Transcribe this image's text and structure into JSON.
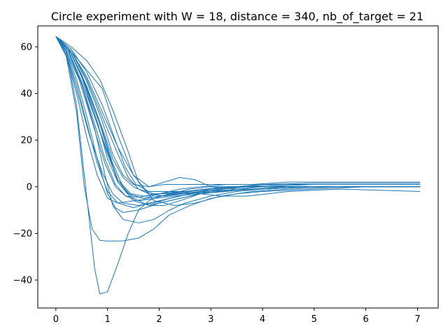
{
  "chart_data": {
    "type": "line",
    "title": "Circle experiment with W = 18, distance = 340, nb_of_target = 21",
    "xlabel": "",
    "ylabel": "",
    "xlim": [
      -0.35,
      7.4
    ],
    "ylim": [
      -52,
      69
    ],
    "xticks": [
      0,
      1,
      2,
      3,
      4,
      5,
      6,
      7
    ],
    "yticks": [
      -40,
      -20,
      0,
      20,
      40,
      60
    ],
    "grid": false,
    "color": "#1f77b4",
    "series": [
      {
        "x": [
          0,
          0.2,
          0.4,
          0.6,
          0.75,
          0.85,
          1.0,
          1.2,
          1.4,
          1.6,
          1.8,
          2.0,
          2.3,
          2.6,
          3.0,
          3.5,
          4.0,
          5.0,
          6.0,
          7.05
        ],
        "values": [
          64.5,
          58,
          35,
          -5,
          -35,
          -46,
          -45,
          -33,
          -20,
          -10,
          -6,
          -4,
          -3,
          -2.5,
          -2,
          -1.5,
          -1,
          0,
          0,
          0
        ]
      },
      {
        "x": [
          0,
          0.2,
          0.4,
          0.55,
          0.7,
          0.85,
          1.0,
          1.3,
          1.6,
          1.9,
          2.2,
          2.6,
          3.0,
          3.5,
          4.0,
          5.0,
          6.0,
          7.05
        ],
        "values": [
          64.5,
          56,
          32,
          0,
          -18,
          -23,
          -23.3,
          -23.2,
          -22,
          -18,
          -12,
          -8,
          -5,
          -3,
          -2,
          -1,
          0,
          0
        ]
      },
      {
        "x": [
          0,
          0.3,
          0.6,
          0.9,
          1.2,
          1.5,
          1.8,
          2.1,
          2.4,
          2.8,
          3.2,
          3.7,
          4.5,
          5.5,
          7.05
        ],
        "values": [
          64.5,
          58,
          50,
          42,
          22,
          5,
          -3,
          -4,
          -3,
          -2,
          -1,
          0,
          0,
          0,
          0
        ]
      },
      {
        "x": [
          0,
          0.3,
          0.6,
          0.85,
          1.1,
          1.4,
          1.6,
          1.9,
          2.3,
          2.7,
          3.2,
          3.8,
          4.5,
          5.5,
          7.05
        ],
        "values": [
          64.5,
          60,
          54,
          46,
          33,
          15,
          2,
          -6,
          -8,
          -7,
          -4,
          -2,
          -1,
          0,
          0
        ]
      },
      {
        "x": [
          0,
          0.2,
          0.4,
          0.6,
          0.8,
          1.0,
          1.15,
          1.3,
          1.6,
          2.0,
          2.4,
          2.8,
          3.2,
          3.8,
          4.5,
          7.05
        ],
        "values": [
          64.5,
          58,
          46,
          30,
          12,
          -3,
          -9,
          -11,
          -10,
          -7,
          -5,
          -3,
          -2,
          -1,
          0,
          0
        ]
      },
      {
        "x": [
          0,
          0.25,
          0.5,
          0.75,
          1.0,
          1.2,
          1.5,
          1.8,
          2.2,
          2.6,
          3.0,
          3.5,
          4.0,
          5.0,
          7.05
        ],
        "values": [
          64.5,
          59,
          48,
          34,
          16,
          2,
          -6,
          -8,
          -6,
          -4,
          -2,
          0,
          1,
          1.5,
          1.5
        ]
      },
      {
        "x": [
          0,
          0.25,
          0.5,
          0.75,
          0.95,
          1.1,
          1.3,
          1.6,
          1.9,
          2.2,
          2.5,
          3.0,
          3.5,
          4.0,
          5.0,
          7.05
        ],
        "values": [
          64.5,
          58,
          44,
          25,
          5,
          -8,
          -14,
          -15.5,
          -14,
          -10,
          -7,
          -4,
          -2,
          -1,
          0,
          0
        ]
      },
      {
        "x": [
          0,
          0.3,
          0.6,
          0.9,
          1.2,
          1.5,
          1.8,
          2.1,
          2.4,
          2.7,
          3.0,
          3.5,
          4.0,
          5.0,
          7.05
        ],
        "values": [
          64.5,
          58,
          47,
          32,
          17,
          5,
          0,
          2,
          4,
          3,
          0,
          -1,
          -1,
          0,
          0
        ]
      },
      {
        "x": [
          0,
          0.3,
          0.6,
          0.9,
          1.1,
          1.3,
          1.5,
          1.8,
          2.1,
          2.4,
          2.8,
          3.2,
          3.7,
          4.5,
          7.05
        ],
        "values": [
          64.5,
          57,
          42,
          24,
          10,
          0,
          -5,
          -8,
          -8,
          -6,
          -3,
          -1,
          0,
          0,
          0
        ]
      },
      {
        "x": [
          0,
          0.2,
          0.4,
          0.6,
          0.8,
          1.0,
          1.2,
          1.5,
          1.8,
          2.2,
          2.6,
          3.0,
          3.5,
          4.5,
          7.05
        ],
        "values": [
          64.5,
          57,
          44,
          27,
          10,
          -2,
          -7,
          -9,
          -7,
          -5,
          -3,
          -1,
          0,
          1,
          1
        ]
      },
      {
        "x": [
          0,
          0.2,
          0.45,
          0.7,
          0.95,
          1.15,
          1.35,
          1.6,
          2.0,
          2.5,
          3.0,
          3.5,
          4.0,
          5.0,
          7.05
        ],
        "values": [
          64.5,
          58,
          46,
          28,
          10,
          0,
          -4,
          -4.5,
          -3,
          -2,
          -1,
          0,
          1,
          1,
          1
        ]
      },
      {
        "x": [
          0,
          0.25,
          0.5,
          0.8,
          1.0,
          1.2,
          1.4,
          1.7,
          2.0,
          2.4,
          2.8,
          3.2,
          3.7,
          4.5,
          7.05
        ],
        "values": [
          64.5,
          59,
          48,
          28,
          12,
          2,
          -3,
          -5,
          -4,
          -3,
          -2,
          -1,
          0,
          0,
          0
        ]
      },
      {
        "x": [
          0,
          0.3,
          0.6,
          0.9,
          1.1,
          1.3,
          1.5,
          1.8,
          2.1,
          2.5,
          3.0,
          3.5,
          4.0,
          5.0,
          7.05
        ],
        "values": [
          64.5,
          57,
          43,
          25,
          12,
          4,
          0,
          -3,
          -4,
          -3,
          -2,
          -1,
          0,
          0,
          0
        ]
      },
      {
        "x": [
          0,
          0.2,
          0.4,
          0.6,
          0.8,
          1.0,
          1.2,
          1.5,
          1.9,
          2.3,
          2.8,
          3.3,
          3.8,
          4.5,
          7.05
        ],
        "values": [
          64.5,
          56,
          40,
          21,
          5,
          -5,
          -7,
          -6,
          -5,
          -4,
          -3,
          -2,
          -1,
          0,
          0
        ]
      },
      {
        "x": [
          0,
          0.25,
          0.5,
          0.75,
          1.0,
          1.2,
          1.4,
          1.7,
          2.0,
          2.4,
          2.8,
          3.3,
          3.8,
          4.5,
          7.05
        ],
        "values": [
          64.5,
          58,
          45,
          30,
          15,
          3,
          -3,
          -5,
          -3,
          -1,
          0,
          1,
          1,
          2,
          2
        ]
      },
      {
        "x": [
          0,
          0.25,
          0.5,
          0.75,
          0.95,
          1.15,
          1.35,
          1.6,
          1.9,
          2.2,
          2.6,
          3.0,
          3.5,
          4.0,
          7.05
        ],
        "values": [
          64.5,
          57,
          44,
          27,
          12,
          1,
          -4,
          -6,
          -5,
          -3,
          -1,
          0,
          0,
          0,
          0
        ]
      },
      {
        "x": [
          0,
          0.3,
          0.6,
          0.9,
          1.2,
          1.4,
          1.6,
          1.9,
          2.2,
          2.6,
          3.0,
          3.5,
          4.0,
          5.0,
          7.05
        ],
        "values": [
          64.5,
          58,
          46,
          30,
          14,
          4,
          -1,
          -3,
          -3,
          -2,
          -1,
          0,
          0,
          1,
          1
        ]
      },
      {
        "x": [
          0,
          0.2,
          0.4,
          0.65,
          0.9,
          1.1,
          1.3,
          1.6,
          1.9,
          2.2,
          2.6,
          3.0,
          3.5,
          4.0,
          7.05
        ],
        "values": [
          64.5,
          57,
          42,
          22,
          6,
          -3,
          -7,
          -8,
          -7,
          -5,
          -3,
          -2,
          -1,
          0,
          0
        ]
      },
      {
        "x": [
          0,
          0.3,
          0.6,
          0.9,
          1.15,
          1.35,
          1.55,
          1.8,
          2.1,
          2.5,
          2.9,
          3.3,
          3.8,
          4.5,
          7.05
        ],
        "values": [
          64.5,
          59,
          49,
          35,
          20,
          8,
          1,
          -2,
          -2,
          -2,
          -1,
          0,
          0,
          0,
          0
        ]
      },
      {
        "x": [
          0,
          0.25,
          0.5,
          0.75,
          1.0,
          1.2,
          1.45,
          1.7,
          2.0,
          2.4,
          2.8,
          3.2,
          3.7,
          4.5,
          5.5,
          7.05
        ],
        "values": [
          64.5,
          59,
          47,
          30,
          14,
          3,
          -3,
          -4,
          -3,
          -2,
          -3,
          -4,
          -4,
          -2,
          -1,
          -2
        ]
      },
      {
        "x": [
          0,
          0.3,
          0.6,
          0.9,
          1.1,
          1.3,
          1.5,
          1.8,
          2.1,
          2.4,
          2.8,
          3.2,
          3.7,
          4.5,
          7.05
        ],
        "values": [
          64.5,
          58,
          45,
          28,
          14,
          5,
          1,
          0,
          1,
          1,
          1,
          1,
          1,
          1,
          1
        ]
      }
    ]
  }
}
